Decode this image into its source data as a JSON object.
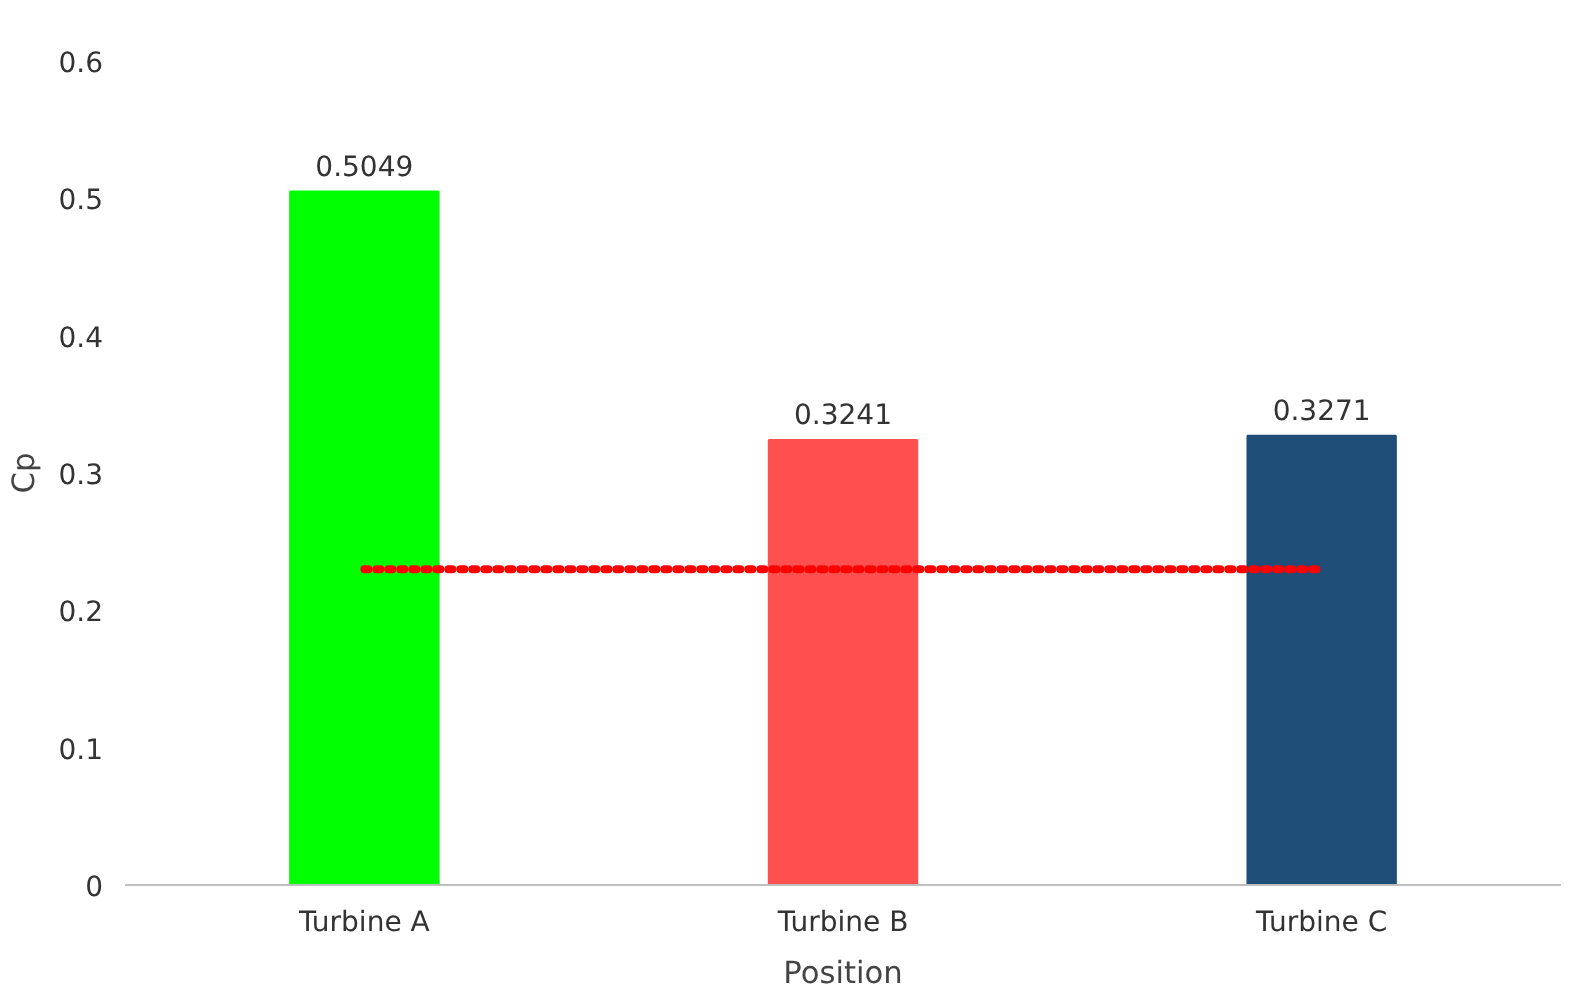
{
  "chart_data": {
    "type": "bar",
    "xlabel": "Position",
    "ylabel": "Cp",
    "categories": [
      "Turbine A",
      "Turbine B",
      "Turbine C"
    ],
    "series": [
      {
        "colors": [
          "#00ff00",
          "#ff5050",
          "#1f4e79"
        ],
        "values": [
          0.5049,
          0.3241,
          0.3271
        ],
        "value_labels": [
          "0.5049",
          "0.3241",
          "0.3271"
        ]
      },
      {
        "type": "line",
        "color": "#ff0000",
        "values": [
          0.23,
          0.23,
          0.23
        ],
        "line_style": "dotted"
      }
    ],
    "ylim": [
      0,
      0.6
    ],
    "yticks": [
      0,
      0.1,
      0.2,
      0.3,
      0.4,
      0.5,
      0.6
    ],
    "grid": false
  }
}
